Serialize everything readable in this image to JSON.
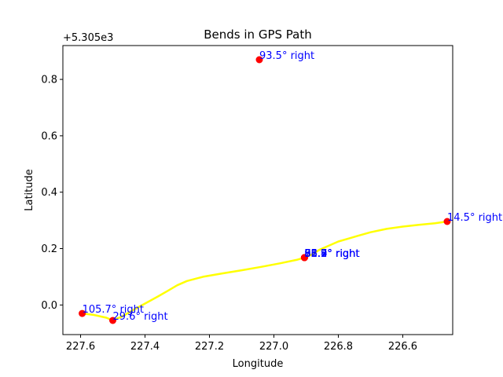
{
  "chart_data": {
    "type": "scatter",
    "title": "Bends in GPS Path",
    "xlabel": "Longitude",
    "ylabel": "Latitude",
    "x_inverted": true,
    "y_offset_label": "+5.305e3",
    "xlim": [
      227.655,
      226.445
    ],
    "ylim": [
      -0.105,
      0.92
    ],
    "x_ticks": [
      227.6,
      227.4,
      227.2,
      227.0,
      226.8,
      226.6
    ],
    "x_tick_labels": [
      "227.6",
      "227.4",
      "227.2",
      "227.0",
      "226.8",
      "226.6"
    ],
    "y_ticks": [
      0.0,
      0.2,
      0.4,
      0.6,
      0.8
    ],
    "y_tick_labels": [
      "0.0",
      "0.2",
      "0.4",
      "0.6",
      "0.8"
    ],
    "grid": false,
    "path": {
      "color": "#ffff00",
      "x": [
        227.595,
        227.56,
        227.52,
        227.5,
        227.47,
        227.44,
        227.4,
        227.36,
        227.33,
        227.3,
        227.27,
        227.22,
        227.16,
        227.1,
        227.04,
        226.98,
        226.93,
        226.905,
        226.88,
        226.86,
        226.83,
        226.8,
        226.77,
        226.74,
        226.7,
        226.65,
        226.6,
        226.55,
        226.5,
        226.462
      ],
      "y": [
        -0.03,
        -0.035,
        -0.045,
        -0.055,
        -0.04,
        -0.02,
        0.005,
        0.03,
        0.05,
        0.07,
        0.085,
        0.1,
        0.112,
        0.123,
        0.135,
        0.148,
        0.16,
        0.168,
        0.18,
        0.195,
        0.21,
        0.225,
        0.235,
        0.245,
        0.258,
        0.27,
        0.278,
        0.284,
        0.29,
        0.296
      ]
    },
    "bends": {
      "color": "#ff0000",
      "label_color": "#0000ff",
      "points": [
        {
          "x": 227.595,
          "y": -0.03,
          "label": "105.7° right"
        },
        {
          "x": 227.5,
          "y": -0.055,
          "label": "29.6° right"
        },
        {
          "x": 227.045,
          "y": 0.87,
          "label": "93.5° right"
        },
        {
          "x": 226.462,
          "y": 0.296,
          "label": "14.5° right"
        },
        {
          "x": 226.905,
          "y": 0.168,
          "label": "95.7° right"
        },
        {
          "x": 226.905,
          "y": 0.168,
          "label": "88.2° right"
        },
        {
          "x": 226.905,
          "y": 0.168,
          "label": "76.4° right"
        },
        {
          "x": 226.905,
          "y": 0.168,
          "label": "62.9° right"
        },
        {
          "x": 226.905,
          "y": 0.168,
          "label": "51.3° right"
        }
      ]
    }
  }
}
